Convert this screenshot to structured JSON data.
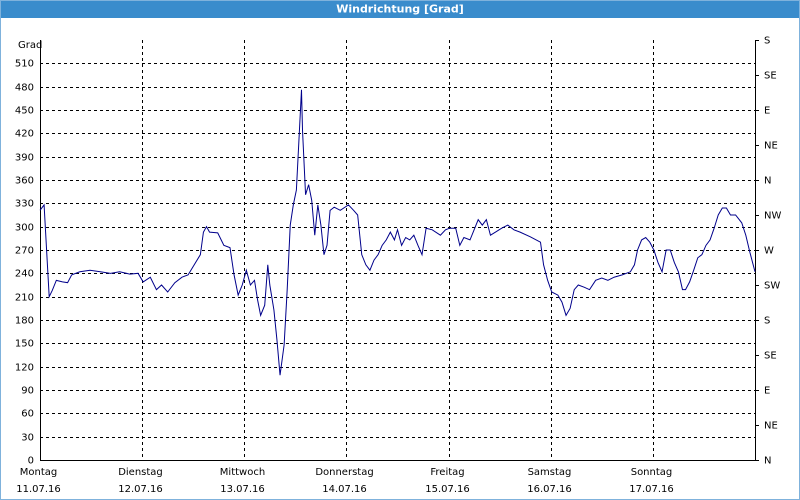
{
  "chart_data": {
    "type": "line",
    "title": "Windrichtung [Grad]",
    "ylabel": "Grad",
    "xlim": [
      0,
      7
    ],
    "xticks": [
      {
        "value": 0,
        "label": "Montag",
        "date": "11.07.16"
      },
      {
        "value": 1,
        "label": "Dienstag",
        "date": "12.07.16"
      },
      {
        "value": 2,
        "label": "Mittwoch",
        "date": "13.07.16"
      },
      {
        "value": 3,
        "label": "Donnerstag",
        "date": "14.07.16"
      },
      {
        "value": 4,
        "label": "Freitag",
        "date": "15.07.16"
      },
      {
        "value": 5,
        "label": "Samstag",
        "date": "16.07.16"
      },
      {
        "value": 6,
        "label": "Sonntag",
        "date": "17.07.16"
      }
    ],
    "ylim": [
      0,
      540
    ],
    "yticks": [
      0,
      30,
      60,
      90,
      120,
      150,
      180,
      210,
      240,
      270,
      300,
      330,
      360,
      390,
      420,
      450,
      480,
      510
    ],
    "y2lim": [
      0,
      540
    ],
    "y2ticks": [
      {
        "value": 0,
        "label": "N"
      },
      {
        "value": 45,
        "label": "NE"
      },
      {
        "value": 90,
        "label": "E"
      },
      {
        "value": 135,
        "label": "SE"
      },
      {
        "value": 180,
        "label": "S"
      },
      {
        "value": 225,
        "label": "SW"
      },
      {
        "value": 270,
        "label": "W"
      },
      {
        "value": 315,
        "label": "NW"
      },
      {
        "value": 360,
        "label": "N"
      },
      {
        "value": 405,
        "label": "NE"
      },
      {
        "value": 450,
        "label": "E"
      },
      {
        "value": 495,
        "label": "SE"
      },
      {
        "value": 540,
        "label": "S"
      }
    ],
    "grid": true,
    "x": [
      0,
      0.04,
      0.07,
      0.09,
      0.12,
      0.16,
      0.22,
      0.27,
      0.31,
      0.39,
      0.49,
      0.59,
      0.69,
      0.78,
      0.88,
      0.96,
      1.01,
      1.08,
      1.14,
      1.19,
      1.25,
      1.32,
      1.39,
      1.45,
      1.51,
      1.57,
      1.6,
      1.63,
      1.66,
      1.74,
      1.8,
      1.86,
      1.9,
      1.94,
      1.98,
      2.02,
      2.06,
      2.1,
      2.13,
      2.16,
      2.2,
      2.23,
      2.25,
      2.29,
      2.32,
      2.35,
      2.39,
      2.42,
      2.45,
      2.48,
      2.51,
      2.54,
      2.56,
      2.57,
      2.6,
      2.63,
      2.66,
      2.69,
      2.72,
      2.75,
      2.78,
      2.81,
      2.84,
      2.88,
      2.94,
      3.02,
      3.07,
      3.11,
      3.15,
      3.19,
      3.23,
      3.27,
      3.31,
      3.35,
      3.39,
      3.43,
      3.47,
      3.5,
      3.54,
      3.58,
      3.62,
      3.66,
      3.7,
      3.74,
      3.78,
      3.84,
      3.92,
      3.97,
      4.01,
      4.07,
      4.11,
      4.15,
      4.21,
      4.25,
      4.29,
      4.33,
      4.37,
      4.41,
      4.46,
      4.52,
      4.58,
      4.64,
      4.7,
      4.8,
      4.9,
      4.93,
      4.97,
      5.01,
      5.07,
      5.11,
      5.15,
      5.19,
      5.23,
      5.27,
      5.33,
      5.38,
      5.44,
      5.5,
      5.56,
      5.62,
      5.7,
      5.78,
      5.82,
      5.85,
      5.89,
      5.93,
      5.97,
      6.01,
      6.05,
      6.09,
      6.13,
      6.17,
      6.21,
      6.25,
      6.29,
      6.32,
      6.36,
      6.4,
      6.44,
      6.48,
      6.52,
      6.56,
      6.6,
      6.64,
      6.68,
      6.72,
      6.76,
      6.81,
      6.87,
      6.91,
      6.95,
      7.0
    ],
    "series": [
      {
        "color": "#00008b",
        "values": [
          321,
          328,
          257,
          210,
          218,
          231,
          229,
          228,
          238,
          242,
          244,
          242,
          240,
          242,
          239,
          240,
          229,
          235,
          219,
          225,
          216,
          228,
          235,
          238,
          251,
          264,
          293,
          300,
          293,
          292,
          276,
          273,
          238,
          212,
          225,
          244,
          225,
          231,
          206,
          186,
          199,
          251,
          225,
          193,
          154,
          109,
          148,
          219,
          302,
          328,
          347,
          424,
          476,
          424,
          341,
          354,
          334,
          289,
          328,
          302,
          264,
          276,
          321,
          325,
          321,
          328,
          321,
          315,
          264,
          251,
          244,
          257,
          264,
          276,
          283,
          293,
          283,
          296,
          276,
          286,
          283,
          289,
          276,
          264,
          298,
          296,
          289,
          296,
          298,
          298,
          276,
          286,
          283,
          296,
          309,
          302,
          309,
          289,
          293,
          298,
          302,
          296,
          293,
          287,
          280,
          251,
          231,
          216,
          212,
          203,
          186,
          195,
          219,
          225,
          222,
          219,
          231,
          234,
          231,
          235,
          238,
          242,
          251,
          270,
          283,
          286,
          280,
          270,
          254,
          242,
          270,
          270,
          254,
          242,
          219,
          219,
          229,
          244,
          260,
          264,
          276,
          283,
          298,
          315,
          324,
          324,
          315,
          315,
          305,
          289,
          267,
          242
        ]
      }
    ]
  }
}
